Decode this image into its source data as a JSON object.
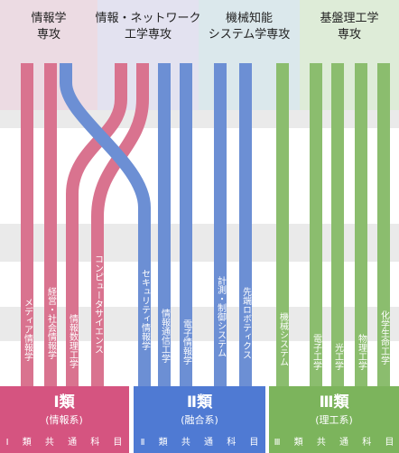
{
  "colors": {
    "red": "#d9738f",
    "blue": "#6c8fd4",
    "green": "#8bbd6e",
    "red_dark": "#d55480",
    "blue_dark": "#4f7ad3",
    "green_dark": "#7cb45c",
    "dept1_bg": "#ecdbe3",
    "dept2_bg": "#e3e2f0",
    "dept3_bg": "#dbe8ec",
    "dept4_bg": "#deecd8",
    "band_bg": "#eaeaea"
  },
  "departments": [
    {
      "name_lines": [
        "情報学",
        "専攻"
      ]
    },
    {
      "name_lines": [
        "情報・ネットワーク",
        "工学専攻"
      ]
    },
    {
      "name_lines": [
        "機械知能",
        "システム学専攻"
      ]
    },
    {
      "name_lines": [
        "基盤理工学",
        "専攻"
      ]
    }
  ],
  "courses": [
    {
      "label": "メディア情報学"
    },
    {
      "label": "経営・社会情報学"
    },
    {
      "label": "情報数理工学"
    },
    {
      "label": "コンピュータサイエンス"
    },
    {
      "label": "セキュリティ情報学"
    },
    {
      "label": "情報通信工学"
    },
    {
      "label": "電子情報学"
    },
    {
      "label": "計測・制御システム"
    },
    {
      "label": "先端ロボティクス"
    },
    {
      "label": "機械システム"
    },
    {
      "label": "電子工学"
    },
    {
      "label": "光工学"
    },
    {
      "label": "物理工学"
    },
    {
      "label": "化学生命工学"
    }
  ],
  "categories": [
    {
      "title": "Ⅰ類",
      "subtitle": "(情報系)",
      "common": "Ⅰ 類 共 通 科 目"
    },
    {
      "title": "Ⅱ類",
      "subtitle": "(融合系)",
      "common": "Ⅱ 類 共 通 科 目"
    },
    {
      "title": "Ⅲ類",
      "subtitle": "(理工系)",
      "common": "Ⅲ 類 共 通 科 目"
    }
  ]
}
